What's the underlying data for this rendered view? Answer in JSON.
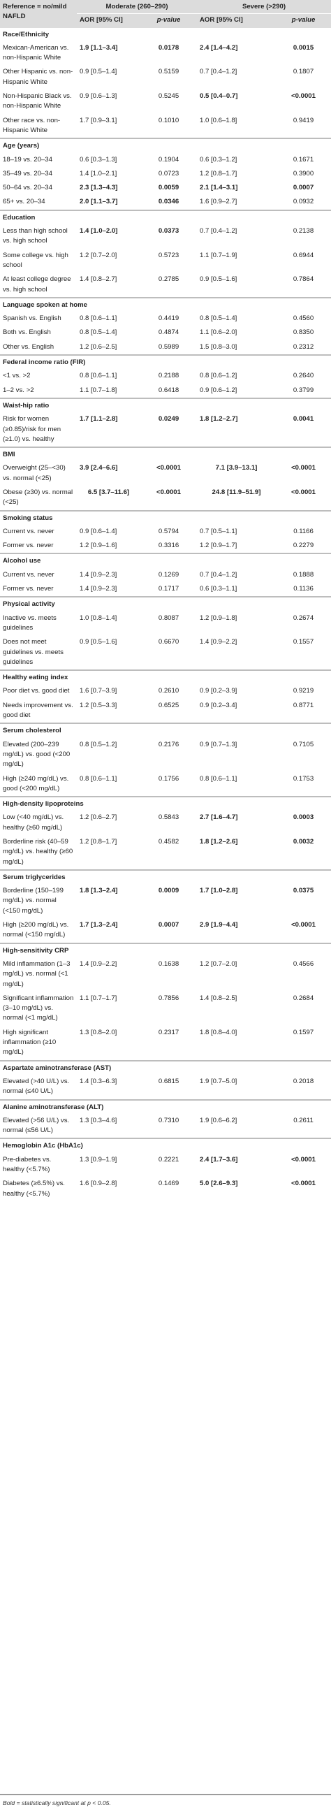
{
  "table": {
    "header": {
      "reference": "Reference = no/mild NAFLD",
      "moderate": "Moderate (260–290)",
      "severe": "Severe (>290)",
      "aor": "AOR [95% CI]",
      "pvalue": "p-value"
    },
    "sections": [
      {
        "title": "Race/Ethnicity",
        "rows": [
          {
            "label": "Mexican-American vs. non-Hispanic White",
            "mod_aor": "1.9 [1.1–3.4]",
            "mod_p": "0.0178",
            "sev_aor": "2.4 [1.4–4.2]",
            "sev_p": "0.0015",
            "mod_bold": true,
            "sev_bold": true
          },
          {
            "label": "Other Hispanic vs. non-Hispanic White",
            "mod_aor": "0.9 [0.5–1.4]",
            "mod_p": "0.5159",
            "sev_aor": "0.7 [0.4–1.2]",
            "sev_p": "0.1807",
            "mod_bold": false,
            "sev_bold": false
          },
          {
            "label": "Non-Hispanic Black vs. non-Hispanic White",
            "mod_aor": "0.9 [0.6–1.3]",
            "mod_p": "0.5245",
            "sev_aor": "0.5 [0.4–0.7]",
            "sev_p": "<0.0001",
            "mod_bold": false,
            "sev_bold": true
          },
          {
            "label": "Other race vs. non-Hispanic White",
            "mod_aor": "1.7 [0.9–3.1]",
            "mod_p": "0.1010",
            "sev_aor": "1.0 [0.6–1.8]",
            "sev_p": "0.9419",
            "mod_bold": false,
            "sev_bold": false
          }
        ]
      },
      {
        "title": "Age (years)",
        "rows": [
          {
            "label": "18–19 vs. 20–34",
            "mod_aor": "0.6 [0.3–1.3]",
            "mod_p": "0.1904",
            "sev_aor": "0.6 [0.3–1.2]",
            "sev_p": "0.1671",
            "mod_bold": false,
            "sev_bold": false
          },
          {
            "label": "35–49 vs. 20–34",
            "mod_aor": "1.4 [1.0–2.1]",
            "mod_p": "0.0723",
            "sev_aor": "1.2 [0.8–1.7]",
            "sev_p": "0.3900",
            "mod_bold": false,
            "sev_bold": false
          },
          {
            "label": "50–64 vs. 20–34",
            "mod_aor": "2.3 [1.3–4.3]",
            "mod_p": "0.0059",
            "sev_aor": "2.1 [1.4–3.1]",
            "sev_p": "0.0007",
            "mod_bold": true,
            "sev_bold": true
          },
          {
            "label": "65+ vs. 20–34",
            "mod_aor": "2.0 [1.1–3.7]",
            "mod_p": "0.0346",
            "sev_aor": "1.6 [0.9–2.7]",
            "sev_p": "0.0932",
            "mod_bold": true,
            "sev_bold": false
          }
        ]
      },
      {
        "title": "Education",
        "rows": [
          {
            "label": "Less than high school vs. high school",
            "mod_aor": "1.4 [1.0–2.0]",
            "mod_p": "0.0373",
            "sev_aor": "0.7 [0.4–1.2]",
            "sev_p": "0.2138",
            "mod_bold": true,
            "sev_bold": false
          },
          {
            "label": "Some college vs. high school",
            "mod_aor": "1.2 [0.7–2.0]",
            "mod_p": "0.5723",
            "sev_aor": "1.1 [0.7–1.9]",
            "sev_p": "0.6944",
            "mod_bold": false,
            "sev_bold": false
          },
          {
            "label": "At least college degree vs. high school",
            "mod_aor": "1.4 [0.8–2.7]",
            "mod_p": "0.2785",
            "sev_aor": "0.9 [0.5–1.6]",
            "sev_p": "0.7864",
            "mod_bold": false,
            "sev_bold": false
          }
        ]
      },
      {
        "title": "Language spoken at home",
        "rows": [
          {
            "label": "Spanish vs. English",
            "mod_aor": "0.8 [0.6–1.1]",
            "mod_p": "0.4419",
            "sev_aor": "0.8 [0.5–1.4]",
            "sev_p": "0.4560",
            "mod_bold": false,
            "sev_bold": false
          },
          {
            "label": "Both vs. English",
            "mod_aor": "0.8 [0.5–1.4]",
            "mod_p": "0.4874",
            "sev_aor": "1.1 [0.6–2.0]",
            "sev_p": "0.8350",
            "mod_bold": false,
            "sev_bold": false
          },
          {
            "label": "Other vs. English",
            "mod_aor": "1.2 [0.6–2.5]",
            "mod_p": "0.5989",
            "sev_aor": "1.5 [0.8–3.0]",
            "sev_p": "0.2312",
            "mod_bold": false,
            "sev_bold": false
          }
        ]
      },
      {
        "title": "Federal income ratio (FIR)",
        "rows": [
          {
            "label": "<1 vs. >2",
            "mod_aor": "0.8 [0.6–1.1]",
            "mod_p": "0.2188",
            "sev_aor": "0.8 [0.6–1.2]",
            "sev_p": "0.2640",
            "mod_bold": false,
            "sev_bold": false
          },
          {
            "label": "1–2 vs. >2",
            "mod_aor": "1.1 [0.7–1.8]",
            "mod_p": "0.6418",
            "sev_aor": "0.9 [0.6–1.2]",
            "sev_p": "0.3799",
            "mod_bold": false,
            "sev_bold": false
          }
        ]
      },
      {
        "title": "Waist-hip ratio",
        "rows": [
          {
            "label": "Risk for women (≥0.85)/risk for men (≥1.0) vs. healthy",
            "mod_aor": "1.7 [1.1–2.8]",
            "mod_p": "0.0249",
            "sev_aor": "1.8 [1.2–2.7]",
            "sev_p": "0.0041",
            "mod_bold": true,
            "sev_bold": true
          }
        ]
      },
      {
        "title": "BMI",
        "rows": [
          {
            "label": "Overweight (25–<30) vs. normal (<25)",
            "mod_aor": "3.9 [2.4–6.6]",
            "mod_p": "<0.0001",
            "sev_aor": "7.1 [3.9–13.1]",
            "sev_p": "<0.0001",
            "mod_bold": true,
            "sev_bold": true,
            "sev_center": true
          },
          {
            "label": "Obese (≥30) vs. normal (<25)",
            "mod_aor": "6.5 [3.7–11.6]",
            "mod_p": "<0.0001",
            "sev_aor": "24.8 [11.9–51.9]",
            "sev_p": "<0.0001",
            "mod_bold": true,
            "sev_bold": true,
            "mod_center": true,
            "sev_center": true
          }
        ]
      },
      {
        "title": "Smoking status",
        "rows": [
          {
            "label": "Current vs. never",
            "mod_aor": "0.9 [0.6–1.4]",
            "mod_p": "0.5794",
            "sev_aor": "0.7 [0.5–1.1]",
            "sev_p": "0.1166",
            "mod_bold": false,
            "sev_bold": false
          },
          {
            "label": "Former vs. never",
            "mod_aor": "1.2 [0.9–1.6]",
            "mod_p": "0.3316",
            "sev_aor": "1.2 [0.9–1.7]",
            "sev_p": "0.2279",
            "mod_bold": false,
            "sev_bold": false
          }
        ]
      },
      {
        "title": "Alcohol use",
        "rows": [
          {
            "label": "Current vs. never",
            "mod_aor": "1.4 [0.9–2.3]",
            "mod_p": "0.1269",
            "sev_aor": "0.7 [0.4–1.2]",
            "sev_p": "0.1888",
            "mod_bold": false,
            "sev_bold": false
          },
          {
            "label": "Former vs. never",
            "mod_aor": "1.4 [0.9–2.3]",
            "mod_p": "0.1717",
            "sev_aor": "0.6 [0.3–1.1]",
            "sev_p": "0.1136",
            "mod_bold": false,
            "sev_bold": false
          }
        ]
      },
      {
        "title": "Physical activity",
        "rows": [
          {
            "label": "Inactive vs. meets guidelines",
            "mod_aor": "1.0 [0.8–1.4]",
            "mod_p": "0.8087",
            "sev_aor": "1.2 [0.9–1.8]",
            "sev_p": "0.2674",
            "mod_bold": false,
            "sev_bold": false
          },
          {
            "label": "Does not meet guidelines vs. meets guidelines",
            "mod_aor": "0.9 [0.5–1.6]",
            "mod_p": "0.6670",
            "sev_aor": "1.4 [0.9–2.2]",
            "sev_p": "0.1557",
            "mod_bold": false,
            "sev_bold": false
          }
        ]
      },
      {
        "title": "Healthy eating index",
        "rows": [
          {
            "label": "Poor diet vs. good diet",
            "mod_aor": "1.6 [0.7–3.9]",
            "mod_p": "0.2610",
            "sev_aor": "0.9 [0.2–3.9]",
            "sev_p": "0.9219",
            "mod_bold": false,
            "sev_bold": false
          },
          {
            "label": "Needs improvement vs. good diet",
            "mod_aor": "1.2 [0.5–3.3]",
            "mod_p": "0.6525",
            "sev_aor": "0.9 [0.2–3.4]",
            "sev_p": "0.8771",
            "mod_bold": false,
            "sev_bold": false
          }
        ]
      },
      {
        "title": "Serum cholesterol",
        "rows": [
          {
            "label": "Elevated (200–239 mg/dL) vs. good (<200 mg/dL)",
            "mod_aor": "0.8 [0.5–1.2]",
            "mod_p": "0.2176",
            "sev_aor": "0.9 [0.7–1.3]",
            "sev_p": "0.7105",
            "mod_bold": false,
            "sev_bold": false
          },
          {
            "label": "High (≥240 mg/dL) vs. good (<200 mg/dL)",
            "mod_aor": "0.8 [0.6–1.1]",
            "mod_p": "0.1756",
            "sev_aor": "0.8 [0.6–1.1]",
            "sev_p": "0.1753",
            "mod_bold": false,
            "sev_bold": false
          }
        ]
      },
      {
        "title": "High-density lipoproteins",
        "rows": [
          {
            "label": "Low (<40 mg/dL) vs. healthy (≥60 mg/dL)",
            "mod_aor": "1.2 [0.6–2.7]",
            "mod_p": "0.5843",
            "sev_aor": "2.7 [1.6–4.7]",
            "sev_p": "0.0003",
            "mod_bold": false,
            "sev_bold": true
          },
          {
            "label": "Borderline risk (40–59 mg/dL) vs. healthy (≥60 mg/dL)",
            "mod_aor": "1.2 [0.8–1.7]",
            "mod_p": "0.4582",
            "sev_aor": "1.8 [1.2–2.6]",
            "sev_p": "0.0032",
            "mod_bold": false,
            "sev_bold": true
          }
        ]
      },
      {
        "title": "Serum triglycerides",
        "rows": [
          {
            "label": "Borderline (150–199 mg/dL) vs. normal (<150 mg/dL)",
            "mod_aor": "1.8 [1.3–2.4]",
            "mod_p": "0.0009",
            "sev_aor": "1.7 [1.0–2.8]",
            "sev_p": "0.0375",
            "mod_bold": true,
            "sev_bold": true
          },
          {
            "label": "High (≥200 mg/dL) vs. normal (<150 mg/dL)",
            "mod_aor": "1.7 [1.3–2.4]",
            "mod_p": "0.0007",
            "sev_aor": "2.9 [1.9–4.4]",
            "sev_p": "<0.0001",
            "mod_bold": true,
            "sev_bold": true
          }
        ]
      },
      {
        "title": "High-sensitivity CRP",
        "rows": [
          {
            "label": "Mild inflammation (1–3 mg/dL) vs. normal (<1 mg/dL)",
            "mod_aor": "1.4 [0.9–2.2]",
            "mod_p": "0.1638",
            "sev_aor": "1.2 [0.7–2.0]",
            "sev_p": "0.4566",
            "mod_bold": false,
            "sev_bold": false
          },
          {
            "label": "Significant inflammation (3–10 mg/dL) vs. normal (<1 mg/dL)",
            "mod_aor": "1.1 [0.7–1.7]",
            "mod_p": "0.7856",
            "sev_aor": "1.4 [0.8–2.5]",
            "sev_p": "0.2684",
            "mod_bold": false,
            "sev_bold": false
          },
          {
            "label": "High significant inflammation (≥10 mg/dL)",
            "mod_aor": "1.3 [0.8–2.0]",
            "mod_p": "0.2317",
            "sev_aor": "1.8 [0.8–4.0]",
            "sev_p": "0.1597",
            "mod_bold": false,
            "sev_bold": false
          }
        ]
      },
      {
        "title": "Aspartate aminotransferase (AST)",
        "rows": [
          {
            "label": "Elevated (>40 U/L) vs. normal (≤40 U/L)",
            "mod_aor": "1.4 [0.3–6.3]",
            "mod_p": "0.6815",
            "sev_aor": "1.9 [0.7–5.0]",
            "sev_p": "0.2018",
            "mod_bold": false,
            "sev_bold": false
          }
        ]
      },
      {
        "title": "Alanine aminotransferase (ALT)",
        "rows": [
          {
            "label": "Elevated (>56 U/L) vs. normal (≤56 U/L)",
            "mod_aor": "1.3 [0.3–4.6]",
            "mod_p": "0.7310",
            "sev_aor": "1.9 [0.6–6.2]",
            "sev_p": "0.2611",
            "mod_bold": false,
            "sev_bold": false
          }
        ]
      },
      {
        "title": "Hemoglobin A1c (HbA1c)",
        "rows": [
          {
            "label": "Pre-diabetes vs. healthy (<5.7%)",
            "mod_aor": "1.3 [0.9–1.9]",
            "mod_p": "0.2221",
            "sev_aor": "2.4 [1.7–3.6]",
            "sev_p": "<0.0001",
            "mod_bold": false,
            "sev_bold": true
          },
          {
            "label": "Diabetes (≥6.5%) vs. healthy (<5.7%)",
            "mod_aor": "1.6 [0.9–2.8]",
            "mod_p": "0.1469",
            "sev_aor": "5.0 [2.6–9.3]",
            "sev_p": "<0.0001",
            "mod_bold": false,
            "sev_bold": true
          }
        ]
      }
    ],
    "footnote": "Bold = statistically significant at p < 0.05."
  }
}
